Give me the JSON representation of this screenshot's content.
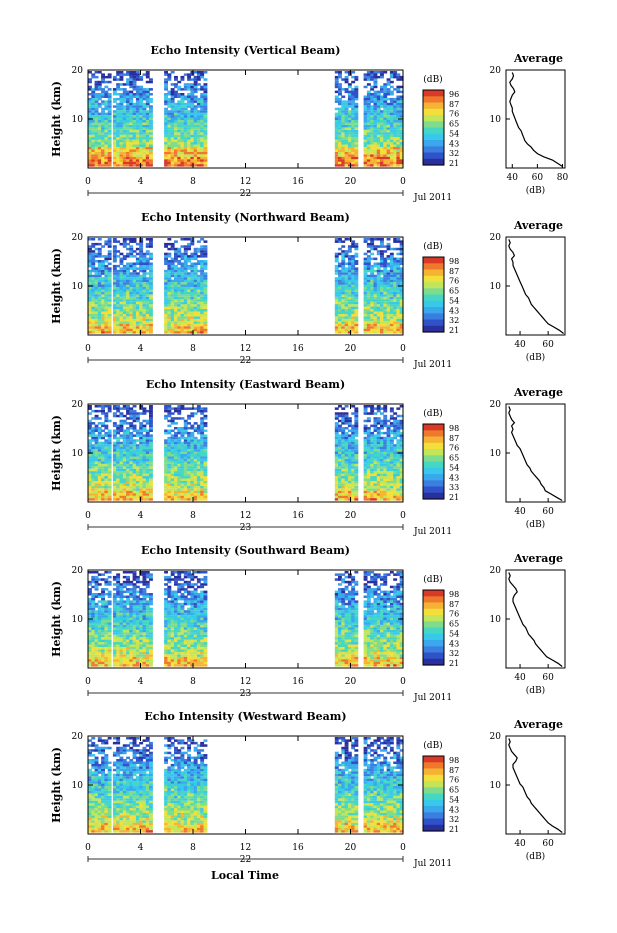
{
  "page": {
    "xlabel": "Local Time"
  },
  "chart_data": [
    {
      "type": "heatmap",
      "title": "Echo Intensity (Vertical Beam)",
      "ylabel": "Height (km)",
      "yticks": [
        10,
        20
      ],
      "ylim": [
        0,
        20
      ],
      "xticks": [
        "0",
        "4",
        "8",
        "12",
        "16",
        "20",
        "0"
      ],
      "xlim": [
        0,
        24
      ],
      "date_marker": "22",
      "month_label": "Jul 2011",
      "colorbar": {
        "unit": "(dB)",
        "labels": [
          "96",
          "87",
          "76",
          "65",
          "54",
          "43",
          "32",
          "21"
        ]
      },
      "data_segments": [
        [
          0,
          1.6
        ],
        [
          1.9,
          4.8
        ],
        [
          5.8,
          8.9
        ],
        [
          18.8,
          20.5
        ],
        [
          21.0,
          24.0
        ]
      ],
      "average": {
        "title": "Average",
        "xlabel": "(dB)",
        "xticks": [
          "40",
          "60",
          "80"
        ],
        "xlim": [
          35,
          82
        ],
        "yticks": [
          10,
          20
        ],
        "ylim": [
          0,
          20
        ],
        "profile_db": [
          80,
          76,
          72,
          65,
          60,
          57,
          55,
          52,
          50,
          49,
          48,
          47,
          45,
          44,
          43,
          42,
          41,
          40,
          40,
          39,
          38,
          39,
          40,
          42,
          41,
          39,
          38,
          40,
          41,
          40
        ]
      }
    },
    {
      "type": "heatmap",
      "title": "Echo Intensity (Northward Beam)",
      "ylabel": "Height (km)",
      "yticks": [
        10,
        20
      ],
      "ylim": [
        0,
        20
      ],
      "xticks": [
        "0",
        "4",
        "8",
        "12",
        "16",
        "20",
        "0"
      ],
      "xlim": [
        0,
        24
      ],
      "date_marker": "22",
      "month_label": "Jul 2011",
      "colorbar": {
        "unit": "(dB)",
        "labels": [
          "98",
          "87",
          "76",
          "65",
          "54",
          "43",
          "32",
          "21"
        ]
      },
      "data_segments": [
        [
          0,
          1.6
        ],
        [
          1.9,
          4.8
        ],
        [
          5.8,
          8.9
        ],
        [
          18.8,
          20.5
        ],
        [
          21.0,
          24.0
        ]
      ],
      "average": {
        "title": "Average",
        "xlabel": "(dB)",
        "xticks": [
          "40",
          "60"
        ],
        "xlim": [
          30,
          72
        ],
        "yticks": [
          10,
          20
        ],
        "ylim": [
          0,
          20
        ],
        "profile_db": [
          71,
          68,
          64,
          60,
          58,
          56,
          54,
          52,
          50,
          48,
          47,
          46,
          44,
          43,
          42,
          41,
          40,
          39,
          38,
          37,
          36,
          35,
          35,
          34,
          36,
          35,
          33,
          32,
          33,
          32
        ]
      }
    },
    {
      "type": "heatmap",
      "title": "Echo Intensity (Eastward Beam)",
      "ylabel": "Height (km)",
      "yticks": [
        10,
        20
      ],
      "ylim": [
        0,
        20
      ],
      "xticks": [
        "0",
        "4",
        "8",
        "12",
        "16",
        "20",
        "0"
      ],
      "xlim": [
        0,
        24
      ],
      "date_marker": "23",
      "month_label": "Jul 2011",
      "colorbar": {
        "unit": "(dB)",
        "labels": [
          "98",
          "87",
          "76",
          "65",
          "54",
          "43",
          "33",
          "21"
        ]
      },
      "data_segments": [
        [
          0,
          1.6
        ],
        [
          1.9,
          4.8
        ],
        [
          5.8,
          8.9
        ],
        [
          18.8,
          20.5
        ],
        [
          21.0,
          24.0
        ]
      ],
      "average": {
        "title": "Average",
        "xlabel": "(dB)",
        "xticks": [
          "40",
          "60"
        ],
        "xlim": [
          30,
          72
        ],
        "yticks": [
          10,
          20
        ],
        "ylim": [
          0,
          20
        ],
        "profile_db": [
          70,
          66,
          62,
          58,
          57,
          55,
          54,
          52,
          50,
          48,
          47,
          45,
          44,
          43,
          42,
          41,
          40,
          38,
          37,
          36,
          35,
          34,
          35,
          34,
          36,
          34,
          33,
          32,
          33,
          32
        ]
      }
    },
    {
      "type": "heatmap",
      "title": "Echo Intensity (Southward Beam)",
      "ylabel": "Height (km)",
      "yticks": [
        10,
        20
      ],
      "ylim": [
        0,
        20
      ],
      "xticks": [
        "0",
        "4",
        "8",
        "12",
        "16",
        "20",
        "0"
      ],
      "xlim": [
        0,
        24
      ],
      "date_marker": "23",
      "month_label": "Jul 2011",
      "colorbar": {
        "unit": "(dB)",
        "labels": [
          "98",
          "87",
          "76",
          "65",
          "54",
          "43",
          "32",
          "21"
        ]
      },
      "data_segments": [
        [
          0,
          1.6
        ],
        [
          1.9,
          4.8
        ],
        [
          5.8,
          8.9
        ],
        [
          18.8,
          20.5
        ],
        [
          21.0,
          24.0
        ]
      ],
      "average": {
        "title": "Average",
        "xlabel": "(dB)",
        "xticks": [
          "40",
          "60"
        ],
        "xlim": [
          30,
          72
        ],
        "yticks": [
          10,
          20
        ],
        "ylim": [
          0,
          20
        ],
        "profile_db": [
          70,
          67,
          63,
          59,
          57,
          55,
          53,
          51,
          50,
          48,
          46,
          45,
          44,
          42,
          41,
          40,
          39,
          38,
          37,
          36,
          35,
          35,
          36,
          38,
          37,
          35,
          33,
          32,
          33,
          32
        ]
      }
    },
    {
      "type": "heatmap",
      "title": "Echo Intensity (Westward Beam)",
      "ylabel": "Height (km)",
      "yticks": [
        10,
        20
      ],
      "ylim": [
        0,
        20
      ],
      "xticks": [
        "0",
        "4",
        "8",
        "12",
        "16",
        "20",
        "0"
      ],
      "xlim": [
        0,
        24
      ],
      "date_marker": "22",
      "month_label": "Jul 2011",
      "colorbar": {
        "unit": "(dB)",
        "labels": [
          "98",
          "87",
          "76",
          "65",
          "54",
          "43",
          "32",
          "21"
        ]
      },
      "data_segments": [
        [
          0,
          1.6
        ],
        [
          1.9,
          4.8
        ],
        [
          5.8,
          8.9
        ],
        [
          18.8,
          20.5
        ],
        [
          21.0,
          24.0
        ]
      ],
      "average": {
        "title": "Average",
        "xlabel": "(dB)",
        "xticks": [
          "40",
          "60"
        ],
        "xlim": [
          30,
          72
        ],
        "yticks": [
          10,
          20
        ],
        "ylim": [
          0,
          20
        ],
        "profile_db": [
          70,
          67,
          63,
          60,
          58,
          56,
          54,
          52,
          50,
          48,
          47,
          45,
          44,
          43,
          42,
          40,
          39,
          38,
          37,
          36,
          35,
          35,
          37,
          38,
          36,
          34,
          33,
          32,
          33,
          32
        ]
      }
    }
  ]
}
